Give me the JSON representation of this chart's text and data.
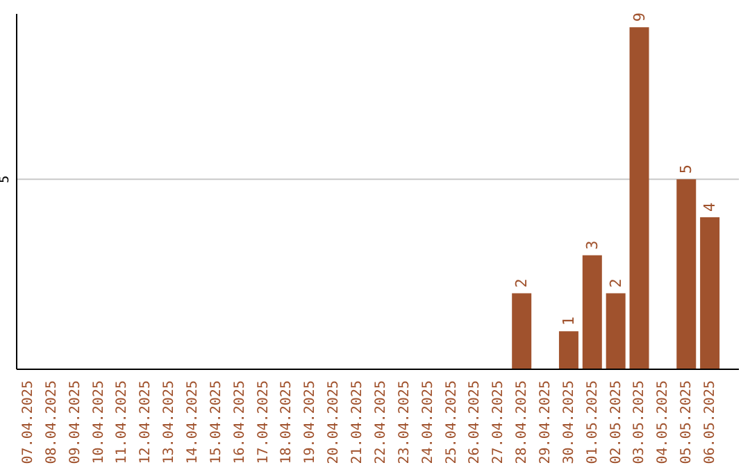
{
  "chart_data": {
    "type": "bar",
    "categories": [
      "07.04.2025",
      "08.04.2025",
      "09.04.2025",
      "10.04.2025",
      "11.04.2025",
      "12.04.2025",
      "13.04.2025",
      "14.04.2025",
      "15.04.2025",
      "16.04.2025",
      "17.04.2025",
      "18.04.2025",
      "19.04.2025",
      "20.04.2025",
      "21.04.2025",
      "22.04.2025",
      "23.04.2025",
      "24.04.2025",
      "25.04.2025",
      "26.04.2025",
      "27.04.2025",
      "28.04.2025",
      "29.04.2025",
      "30.04.2025",
      "01.05.2025",
      "02.05.2025",
      "03.05.2025",
      "04.05.2025",
      "05.05.2025",
      "06.05.2025"
    ],
    "values": [
      null,
      null,
      null,
      null,
      null,
      null,
      null,
      null,
      null,
      null,
      null,
      null,
      null,
      null,
      null,
      null,
      null,
      null,
      null,
      null,
      null,
      2,
      null,
      1,
      3,
      2,
      9,
      null,
      5,
      4
    ],
    "color": "#a0522d",
    "ylim": [
      0,
      9.35
    ],
    "yticks": [
      5
    ],
    "grid": "y",
    "data_labels": true
  }
}
